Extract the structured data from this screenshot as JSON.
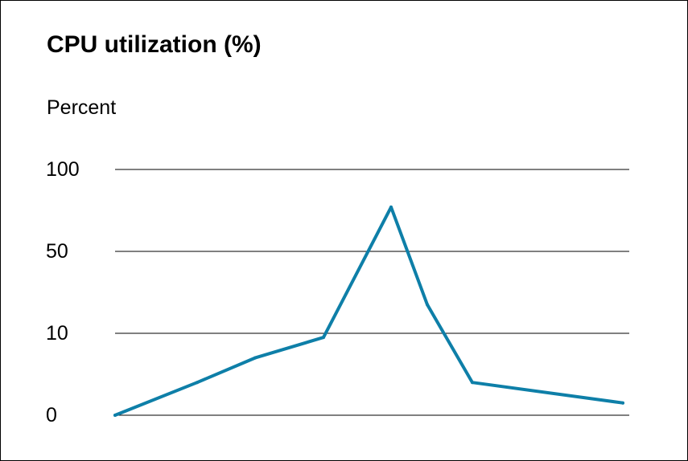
{
  "chart_data": {
    "type": "line",
    "title": "CPU utilization (%)",
    "ylabel": "Percent",
    "xlabel": "",
    "y_ticks": [
      "0",
      "10",
      "50",
      "100"
    ],
    "y_scale": "nonlinear (equally spaced ticks at 0, 10, 50, 100)",
    "grid": true,
    "legend": "none",
    "colors": {
      "line": "#0E7FA8",
      "grid": "#000000",
      "text": "#000000"
    },
    "series": [
      {
        "x": [
          0,
          1,
          2,
          3,
          4,
          5,
          6,
          7
        ],
        "values": [
          0,
          4,
          7,
          9.5,
          77,
          24,
          4,
          1.5
        ]
      }
    ]
  }
}
